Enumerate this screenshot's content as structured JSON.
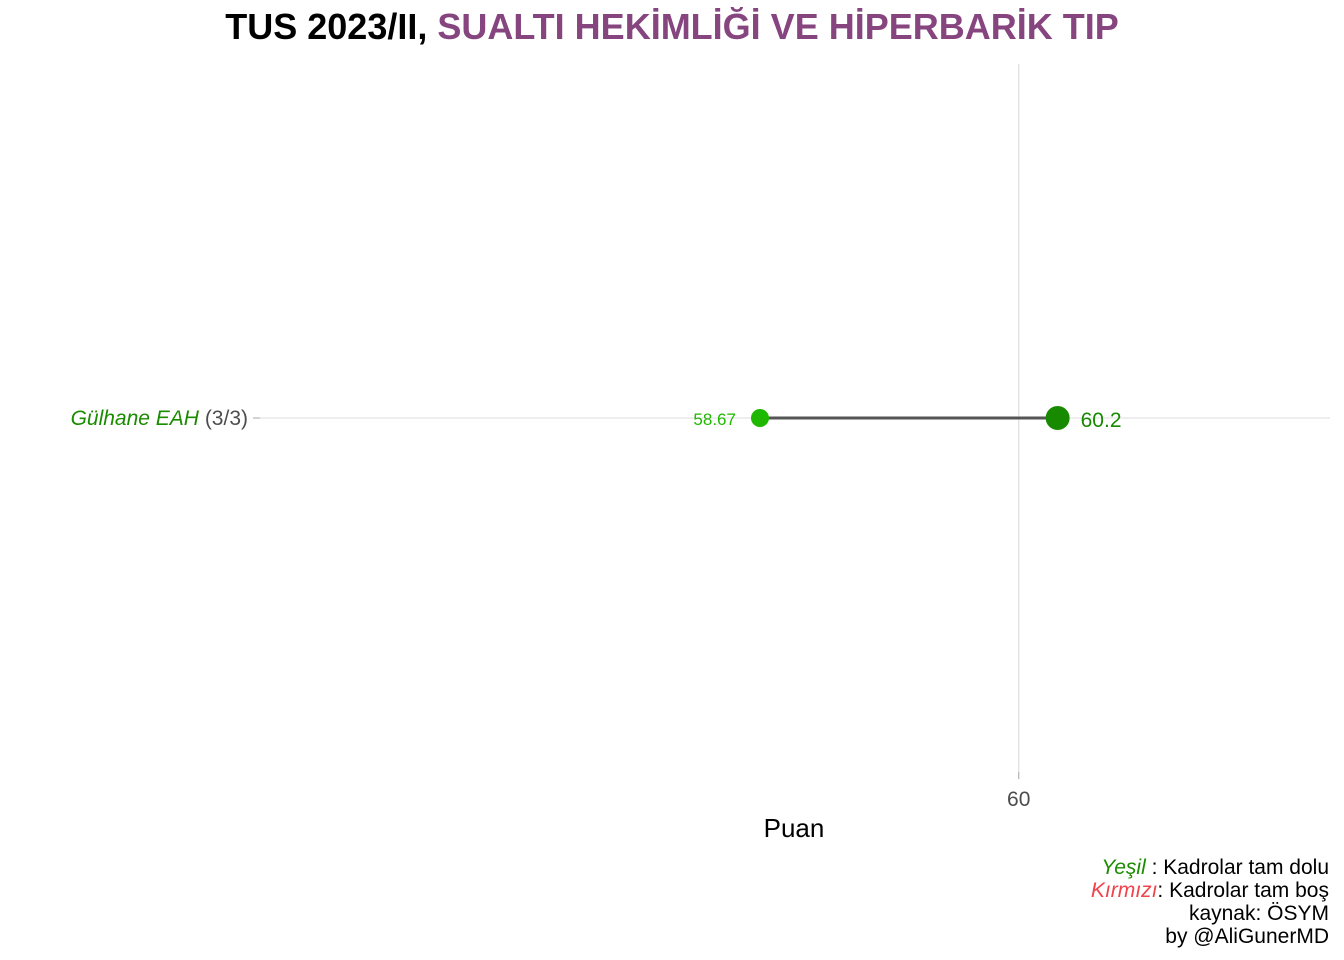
{
  "title": {
    "prefix": "TUS 2023/II, ",
    "highlight": "SUALTI HEKİMLİĞİ VE HİPERBARİK TIP",
    "highlight_color": "#86457f"
  },
  "chart_data": {
    "type": "dumbbell",
    "xlabel": "Puan",
    "x_ticks": [
      60
    ],
    "xlim": [
      56.1,
      61.6
    ],
    "grid": true,
    "categories": [
      {
        "name": "Gülhane EAH",
        "count": "(3/3)",
        "status": "full",
        "label_color": "#1a8c00",
        "min": 58.67,
        "max": 60.2,
        "min_label": "58.67",
        "max_label": "60.2",
        "min_color": "#1fb800",
        "max_color": "#178a00"
      }
    ]
  },
  "caption": {
    "green_word": "Yeşil",
    "green_text": " : Kadrolar tam dolu",
    "red_word": "Kırmızı",
    "red_text": ": Kadrolar tam boş",
    "source": "kaynak: ÖSYM",
    "author": "by @AliGunerMD"
  }
}
